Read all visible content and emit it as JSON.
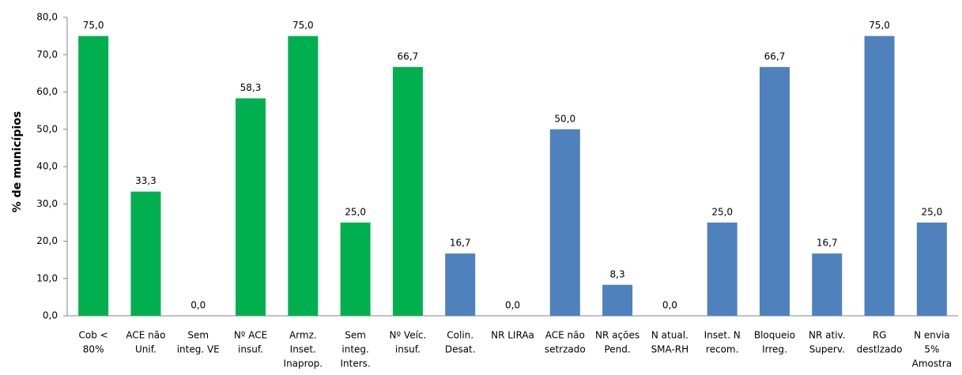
{
  "chart_data": {
    "type": "bar",
    "y_label": "% de municípios",
    "categories": [
      [
        "Cob <",
        "80%"
      ],
      [
        "ACE não",
        "Unif."
      ],
      [
        "Sem",
        "integ. VE"
      ],
      [
        "Nº ACE",
        "insuf."
      ],
      [
        "Armz.",
        "Inset.",
        "Inaprop."
      ],
      [
        "Sem",
        "integ.",
        "Inters."
      ],
      [
        "Nº Veíc.",
        "insuf."
      ],
      [
        "Colin.",
        "Desat."
      ],
      [
        "NR LIRAa"
      ],
      [
        "ACE não",
        "setrzado"
      ],
      [
        "NR ações",
        "Pend."
      ],
      [
        "N atual.",
        "SMA-RH"
      ],
      [
        "Inset. N",
        "recom."
      ],
      [
        "Bloqueio",
        "Irreg."
      ],
      [
        "NR ativ.",
        "Superv."
      ],
      [
        "RG",
        "destlzado"
      ],
      [
        "N envia",
        "5%",
        "Amostra"
      ]
    ],
    "values": [
      75,
      33.3,
      0,
      58.3,
      75,
      25,
      66.7,
      16.7,
      0,
      50,
      8.3,
      0,
      25,
      66.7,
      16.7,
      75,
      25
    ],
    "value_labels": [
      "75,0",
      "33,3",
      "0,0",
      "58,3",
      "75,0",
      "25,0",
      "66,7",
      "16,7",
      "0,0",
      "50,0",
      "8,3",
      "0,0",
      "25,0",
      "66,7",
      "16,7",
      "75,0",
      "25,0"
    ],
    "colors": [
      "#00b050",
      "#00b050",
      "#00b050",
      "#00b050",
      "#00b050",
      "#00b050",
      "#00b050",
      "#4f81bd",
      "#4f81bd",
      "#4f81bd",
      "#4f81bd",
      "#4f81bd",
      "#4f81bd",
      "#4f81bd",
      "#4f81bd",
      "#4f81bd",
      "#4f81bd"
    ],
    "ylim": [
      0,
      80
    ],
    "yticks": [
      {
        "value": 0,
        "label": "0,0"
      },
      {
        "value": 10,
        "label": "10,0"
      },
      {
        "value": 20,
        "label": "20,0"
      },
      {
        "value": 30,
        "label": "30,0"
      },
      {
        "value": 40,
        "label": "40,0"
      },
      {
        "value": 50,
        "label": "50,0"
      },
      {
        "value": 60,
        "label": "60,0"
      },
      {
        "value": 70,
        "label": "70,0"
      },
      {
        "value": 80,
        "label": "80,0"
      }
    ]
  }
}
